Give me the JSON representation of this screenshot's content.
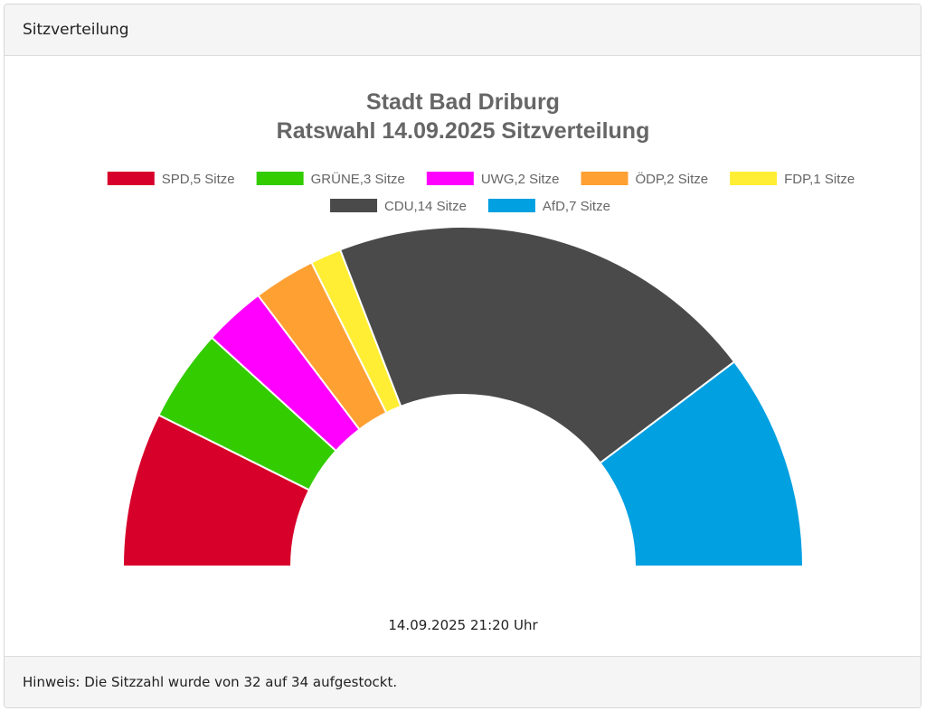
{
  "header": {
    "title": "Sitzverteilung"
  },
  "footer": {
    "note": "Hinweis: Die Sitzzahl wurde von 32 auf 34 aufgestockt."
  },
  "chart_data": {
    "type": "pie",
    "variant": "semicircle-donut",
    "title_line1": "Stadt Bad Driburg",
    "title_line2": "Ratswahl 14.09.2025 Sitzverteilung",
    "subtitle": "14.09.2025 21:20 Uhr",
    "legend_placement": "top",
    "total": 34,
    "series": [
      {
        "name": "SPD",
        "value": 5,
        "label": "SPD,5 Sitze",
        "color": "#d7002a"
      },
      {
        "name": "GRÜNE",
        "value": 3,
        "label": "GRÜNE,3 Sitze",
        "color": "#33cc00"
      },
      {
        "name": "UWG",
        "value": 2,
        "label": "UWG,2 Sitze",
        "color": "#ff00ff"
      },
      {
        "name": "ÖDP",
        "value": 2,
        "label": "ÖDP,2 Sitze",
        "color": "#ffa033"
      },
      {
        "name": "FDP",
        "value": 1,
        "label": "FDP,1 Sitze",
        "color": "#ffee33"
      },
      {
        "name": "CDU",
        "value": 14,
        "label": "CDU,14 Sitze",
        "color": "#4a4a4a"
      },
      {
        "name": "AfD",
        "value": 7,
        "label": "AfD,7 Sitze",
        "color": "#00a0e1"
      }
    ]
  }
}
